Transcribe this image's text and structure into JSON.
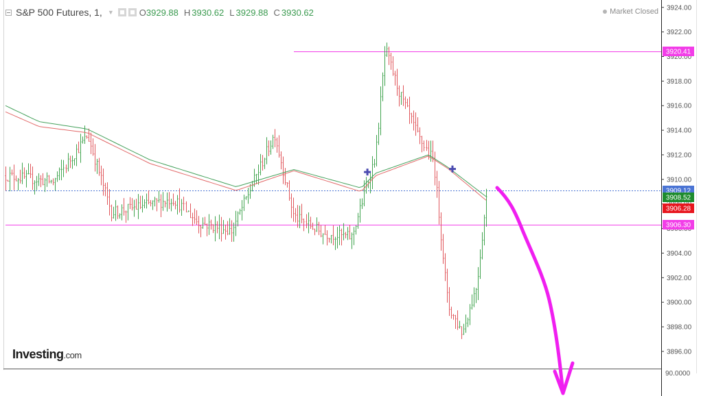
{
  "header": {
    "symbol": "S&P 500 Futures, 1,",
    "o_label": "O",
    "o_value": "3929.88",
    "h_label": "H",
    "h_value": "3930.62",
    "l_label": "L",
    "l_value": "3929.88",
    "c_label": "C",
    "c_value": "3930.62",
    "status": "Market Closed"
  },
  "branding": {
    "name": "Investing",
    "domain": ".com"
  },
  "colors": {
    "up": "#3fa34d",
    "down": "#e0555a",
    "ma_green": "#43a05a",
    "ma_red": "#e26a6a",
    "magenta": "#f23de8",
    "blue_line": "#4a74d4",
    "cross": "#4b4bb0"
  },
  "chart_data": {
    "type": "candlestick",
    "ylim": [
      3894.6,
      3924.6
    ],
    "y_ticks": [
      3924,
      3922,
      3920,
      3918,
      3916,
      3914,
      3912,
      3910,
      3908,
      3906,
      3904,
      3902,
      3900,
      3898,
      3896
    ],
    "y_tick_labels": [
      "3924.00",
      "3922.00",
      "3920.00",
      "3918.00",
      "3916.00",
      "3914.00",
      "3912.00",
      "3910.00",
      "3908.00",
      "3906.00",
      "3904.00",
      "3902.00",
      "3900.00",
      "3898.00",
      "3896.00"
    ],
    "bottom_tick_label": "90.0000",
    "price_tags": [
      {
        "value": 3920.41,
        "label": "3920.41",
        "color": "#f23de8"
      },
      {
        "value": 3909.12,
        "label": "3909.12",
        "color": "#4a74d4"
      },
      {
        "value": 3908.52,
        "label": "3908.52",
        "color": "#1e8c2e"
      },
      {
        "value": 3907.66,
        "label": "3906.28",
        "color": "#e8161e"
      },
      {
        "value": 3906.3,
        "label": "3906.30",
        "color": "#f23de8"
      }
    ],
    "horizontal_lines": [
      {
        "value": 3920.41,
        "color": "#f23de8",
        "from_bar": 0.6,
        "style": "solid"
      },
      {
        "value": 3909.12,
        "color": "#4a74d4",
        "from_bar": 0,
        "style": "dotted"
      },
      {
        "value": 3906.3,
        "color": "#f23de8",
        "from_bar": 0,
        "style": "solid"
      }
    ],
    "cross_markers": [
      {
        "bar": 0.753,
        "value": 3910.6
      },
      {
        "bar": 0.93,
        "value": 3910.85
      }
    ],
    "path_anchors": [
      [
        0,
        3910.3
      ],
      [
        0.1,
        3909.8
      ],
      [
        0.17,
        3913.6
      ],
      [
        0.22,
        3907.3
      ],
      [
        0.35,
        3908.4
      ],
      [
        0.4,
        3906.5
      ],
      [
        0.47,
        3905.8
      ],
      [
        0.56,
        3913.7
      ],
      [
        0.6,
        3907.0
      ],
      [
        0.66,
        3905.6
      ],
      [
        0.72,
        3905.3
      ],
      [
        0.77,
        3912.0
      ],
      [
        0.79,
        3920.6
      ],
      [
        0.82,
        3917.0
      ],
      [
        0.86,
        3913.4
      ],
      [
        0.89,
        3911.5
      ],
      [
        0.92,
        3899.7
      ],
      [
        0.95,
        3897.5
      ],
      [
        0.98,
        3901.4
      ],
      [
        1.0,
        3908.4
      ]
    ],
    "ma_green": [
      [
        0,
        3916.0
      ],
      [
        0.07,
        3914.7
      ],
      [
        0.17,
        3914.1
      ],
      [
        0.3,
        3911.6
      ],
      [
        0.48,
        3909.4
      ],
      [
        0.6,
        3910.8
      ],
      [
        0.74,
        3909.3
      ],
      [
        0.77,
        3910.5
      ],
      [
        0.88,
        3912.0
      ],
      [
        0.92,
        3911.0
      ],
      [
        1.0,
        3908.6
      ]
    ],
    "ma_red": [
      [
        0,
        3915.5
      ],
      [
        0.07,
        3914.3
      ],
      [
        0.17,
        3913.8
      ],
      [
        0.3,
        3911.3
      ],
      [
        0.48,
        3909.1
      ],
      [
        0.6,
        3910.7
      ],
      [
        0.74,
        3909.0
      ],
      [
        0.77,
        3910.3
      ],
      [
        0.88,
        3911.9
      ],
      [
        0.92,
        3910.9
      ],
      [
        1.0,
        3908.3
      ]
    ]
  }
}
